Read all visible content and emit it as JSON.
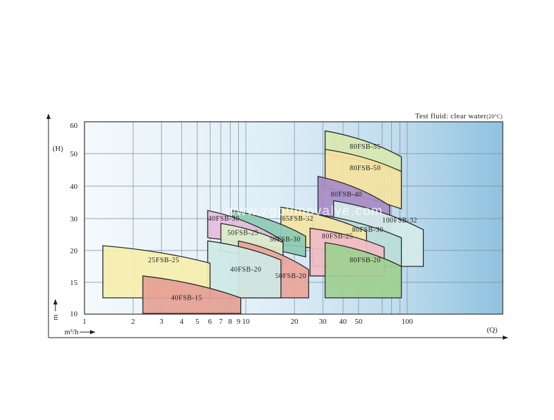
{
  "chart_data": {
    "type": "area",
    "title": "Test fluid: clear water",
    "title_suffix": "(20°C)",
    "xlabel": "(Q)",
    "x_unit": "m³/h",
    "ylabel": "(H)",
    "y_unit": "m",
    "x_scale": "log",
    "xlim": [
      1,
      130
    ],
    "ylim": [
      10,
      60
    ],
    "x_ticks": [
      1,
      2,
      3,
      4,
      5,
      6,
      7,
      8,
      9,
      10,
      20,
      30,
      40,
      50,
      100
    ],
    "y_ticks": [
      10,
      15,
      20,
      30,
      40,
      50,
      60
    ],
    "grid": true,
    "watermark": "www.zgpumpvalve.com",
    "zones": [
      {
        "name": "80FSB-55",
        "color": "#d7e8b1",
        "q": [
          31,
          92
        ],
        "h_left_top": 58,
        "h_right_top": 49,
        "h_left_bottom": 50,
        "h_right_bottom": 44.5,
        "label_q": 55,
        "label_h": 52.5
      },
      {
        "name": "80FSB-50",
        "color": "#f4e2a0",
        "q": [
          31,
          92
        ],
        "h_left_top": 51.5,
        "h_right_top": 44.5,
        "h_left_bottom": 39.5,
        "h_right_bottom": 33,
        "label_q": 55,
        "label_h": 45.5
      },
      {
        "name": "80FSB-40",
        "color": "#a88cc6",
        "q": [
          28,
          78
        ],
        "h_left_top": 43,
        "h_right_top": 34,
        "h_left_bottom": 31,
        "h_right_bottom": 26,
        "label_q": 42,
        "label_h": 37.5
      },
      {
        "name": "100FSB-32",
        "color": "#d4ebea",
        "q": [
          35,
          126
        ],
        "h_left_top": 35.5,
        "h_right_top": 26.5,
        "h_left_bottom": 17.5,
        "h_right_bottom": 17.5,
        "label_q": 90,
        "label_h": 29.5
      },
      {
        "name": "80FSB-30",
        "color": "#b9ddd8",
        "q": [
          26,
          92
        ],
        "h_left_top": 31.5,
        "h_right_top": 24,
        "h_left_bottom": 17.5,
        "h_right_bottom": 17.5,
        "label_q": 57,
        "label_h": 26.5
      },
      {
        "name": "65FSB-32",
        "color": "#f4e4a3",
        "q": [
          16.5,
          56
        ],
        "h_left_top": 33.5,
        "h_right_top": 26,
        "h_left_bottom": 22,
        "h_right_bottom": 19,
        "label_q": 21,
        "label_h": 30
      },
      {
        "name": "80FSB-25",
        "color": "#f0bcc5",
        "q": [
          25,
          72
        ],
        "h_left_top": 27,
        "h_right_top": 21,
        "h_left_bottom": 16,
        "h_right_bottom": 16,
        "label_q": 37,
        "label_h": 24.5
      },
      {
        "name": "80FSB-20",
        "color": "#9fd091",
        "q": [
          31,
          92
        ],
        "h_left_top": 22.5,
        "h_right_top": 17.5,
        "h_left_bottom": 12.5,
        "h_right_bottom": 12.5,
        "label_q": 55,
        "label_h": 18.5
      },
      {
        "name": "50FSB-30",
        "color": "#8ccbb4",
        "q": [
          8.3,
          23.5
        ],
        "h_left_top": 32.5,
        "h_right_top": 24.5,
        "h_left_bottom": 22.5,
        "h_right_bottom": 19,
        "label_q": 17.5,
        "label_h": 23.5
      },
      {
        "name": "40FSB-30",
        "color": "#e6bddf",
        "q": [
          5.8,
          17
        ],
        "h_left_top": 32.5,
        "h_right_top": 23,
        "h_left_bottom": 24,
        "h_right_bottom": 20.5,
        "label_q": 7.3,
        "label_h": 30
      },
      {
        "name": "50FSB-25",
        "color": "#dceccb",
        "q": [
          7,
          17
        ],
        "h_left_top": 28.5,
        "h_right_top": 22.5,
        "h_left_bottom": 20,
        "h_right_bottom": 17.5,
        "label_q": 9.6,
        "label_h": 25.5
      },
      {
        "name": "50FSB-20",
        "color": "#e8a59a",
        "q": [
          9,
          24.5
        ],
        "h_left_top": 23,
        "h_right_top": 17,
        "h_left_bottom": 12.5,
        "h_right_bottom": 12.5,
        "label_q": 19,
        "label_h": 16
      },
      {
        "name": "40FSB-20",
        "color": "#cfe9e5",
        "q": [
          5.8,
          16.5
        ],
        "h_left_top": 23,
        "h_right_top": 18.5,
        "h_left_bottom": 12.5,
        "h_right_bottom": 12.5,
        "label_q": 10,
        "label_h": 17
      },
      {
        "name": "25FSB-25",
        "color": "#f5eeae",
        "q": [
          1.3,
          6
        ],
        "h_left_top": 21.5,
        "h_right_top": 18,
        "h_left_bottom": 12.5,
        "h_right_bottom": 12.5,
        "label_q": 3.1,
        "label_h": 18.5
      },
      {
        "name": "40FSB-15",
        "color": "#e5a095",
        "q": [
          2.3,
          9.3
        ],
        "h_left_top": 16,
        "h_right_top": 12.5,
        "h_left_bottom": 10,
        "h_right_bottom": 10,
        "label_q": 4.3,
        "label_h": 12.5
      }
    ]
  }
}
